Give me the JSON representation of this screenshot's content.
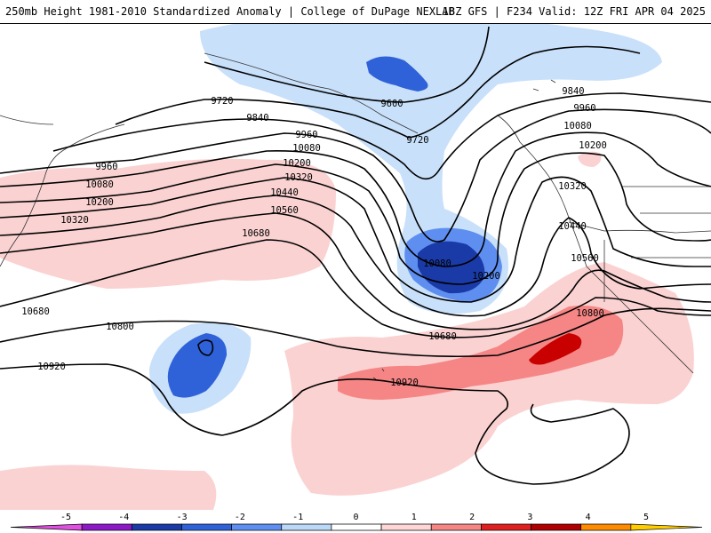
{
  "header": {
    "title": "250mb Height 1981-2010 Standardized Anomaly | College of DuPage NEXLAB",
    "run_info": "18Z GFS | F234 Valid: 12Z FRI APR 04 2025"
  },
  "contour_labels": [
    "9600",
    "9720",
    "9720",
    "9840",
    "9840",
    "9960",
    "9960",
    "9960",
    "10080",
    "10080",
    "10080",
    "10200",
    "10200",
    "10200",
    "10320",
    "10320",
    "10320",
    "10440",
    "10440",
    "10560",
    "10560",
    "10680",
    "10680",
    "10680",
    "10800",
    "10800",
    "10920",
    "10920",
    "10080",
    "10200"
  ],
  "colorbar": {
    "ticks": [
      "-5",
      "-4",
      "-3",
      "-2",
      "-1",
      "0",
      "1",
      "2",
      "3",
      "4",
      "5"
    ],
    "colors": [
      "#e050e0",
      "#8c18c8",
      "#1a3aa8",
      "#2f62d8",
      "#5e8ef0",
      "#bcd8f8",
      "#ffffff",
      "#ffd6d6",
      "#f68686",
      "#e02020",
      "#b00000",
      "#ff8c00",
      "#ffcc00"
    ]
  }
}
